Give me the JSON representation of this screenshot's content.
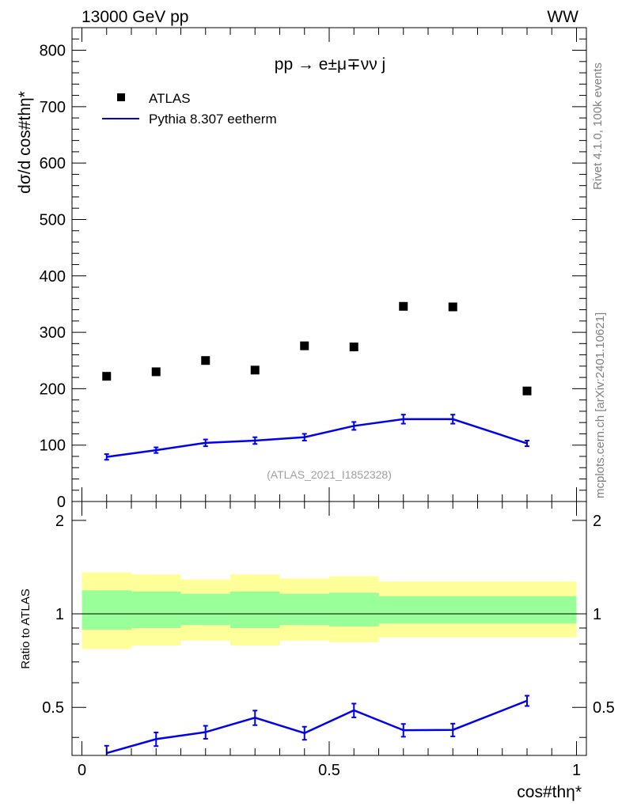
{
  "header": {
    "energy_label": "13000 GeV pp",
    "process_tag": "WW"
  },
  "side_labels": {
    "rivet": "Rivet 4.1.0,  100k events",
    "mcplots": "mcplots.cern.ch [arXiv:2401.10621]"
  },
  "chart_data": [
    {
      "type": "scatter",
      "panel": "main",
      "title": "pp → e±μ∓νν j",
      "ylabel": "dσ/d cos#thη*",
      "ylim": [
        0,
        840
      ],
      "y_ticks": [
        "0",
        "100",
        "200",
        "300",
        "400",
        "500",
        "600",
        "700",
        "800"
      ],
      "watermark": "(ATLAS_2021_I1852328)",
      "legend": [
        "ATLAS",
        "Pythia 8.307 eetherm"
      ],
      "series": [
        {
          "name": "ATLAS",
          "style": "marker",
          "color": "#000000",
          "x": [
            0.05,
            0.15,
            0.25,
            0.35,
            0.45,
            0.55,
            0.65,
            0.75,
            0.9
          ],
          "y": [
            222,
            230,
            250,
            233,
            276,
            274,
            346,
            345,
            196
          ]
        },
        {
          "name": "Pythia 8.307 eetherm",
          "style": "line",
          "color": "#0000ee",
          "x": [
            0.05,
            0.15,
            0.25,
            0.35,
            0.45,
            0.55,
            0.65,
            0.75,
            0.9
          ],
          "y": [
            79,
            91,
            104,
            108,
            114,
            134,
            146,
            146,
            103
          ],
          "err": [
            5,
            5,
            6,
            6,
            6,
            7,
            8,
            8,
            5
          ]
        }
      ]
    },
    {
      "type": "line",
      "panel": "ratio",
      "ylabel": "Ratio to ATLAS",
      "xlabel": "cos#thη*",
      "ylim": [
        0.35,
        2.3
      ],
      "xlim": [
        -0.02,
        1.02
      ],
      "y_ticks": [
        "0.5",
        "1",
        "2"
      ],
      "x_ticks": [
        "0",
        "0.5",
        "1"
      ],
      "bands": {
        "x_edges": [
          0.0,
          0.1,
          0.2,
          0.3,
          0.4,
          0.5,
          0.6,
          0.7,
          0.8,
          1.0
        ],
        "yellow_low": [
          0.77,
          0.79,
          0.82,
          0.79,
          0.82,
          0.81,
          0.84,
          0.84,
          0.84
        ],
        "yellow_high": [
          1.36,
          1.34,
          1.29,
          1.34,
          1.3,
          1.32,
          1.27,
          1.27,
          1.27
        ],
        "green_low": [
          0.89,
          0.9,
          0.92,
          0.9,
          0.92,
          0.91,
          0.93,
          0.93,
          0.93
        ],
        "green_high": [
          1.19,
          1.18,
          1.16,
          1.18,
          1.16,
          1.17,
          1.14,
          1.14,
          1.14
        ],
        "yellow_color": "#ffff99",
        "green_color": "#99ff99"
      },
      "series": [
        {
          "name": "Pythia 8.307 eetherm / ATLAS",
          "color": "#0000ee",
          "x": [
            0.05,
            0.15,
            0.25,
            0.35,
            0.45,
            0.55,
            0.65,
            0.75,
            0.9
          ],
          "y": [
            0.356,
            0.395,
            0.416,
            0.463,
            0.413,
            0.489,
            0.422,
            0.423,
            0.525
          ],
          "err": [
            0.02,
            0.02,
            0.02,
            0.025,
            0.02,
            0.025,
            0.02,
            0.02,
            0.02
          ]
        }
      ]
    }
  ]
}
